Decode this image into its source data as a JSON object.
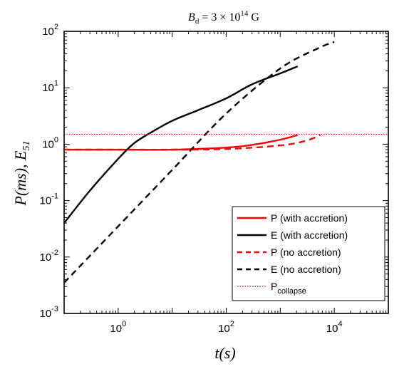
{
  "chart_data": {
    "type": "line",
    "title": {
      "prefix": "B",
      "subscript": "d",
      "middle": " = 3 × 10",
      "superscript": "14",
      "suffix": " G"
    },
    "xlabel": "t(s)",
    "ylabel": {
      "text": "P(ms), E",
      "subscript": "51"
    },
    "x_scale": "log",
    "y_scale": "log",
    "xlim": [
      0.1,
      100000
    ],
    "ylim": [
      0.001,
      100
    ],
    "x_ticks": [
      {
        "value": 1,
        "base": "10",
        "exp": "0"
      },
      {
        "value": 100,
        "base": "10",
        "exp": "2"
      },
      {
        "value": 10000,
        "base": "10",
        "exp": "4"
      }
    ],
    "y_ticks": [
      {
        "value": 0.001,
        "base": "10",
        "exp": "-3"
      },
      {
        "value": 0.01,
        "base": "10",
        "exp": "-2"
      },
      {
        "value": 0.1,
        "base": "10",
        "exp": "-1"
      },
      {
        "value": 1,
        "base": "10",
        "exp": "0"
      },
      {
        "value": 10,
        "base": "10",
        "exp": "1"
      },
      {
        "value": 100,
        "base": "10",
        "exp": "2"
      }
    ],
    "legend_position": "bottom-right",
    "series": [
      {
        "name": "P (with accretion)",
        "color": "#ff0000",
        "dash": "solid",
        "x": [
          0.1,
          1,
          10,
          100,
          300,
          1000,
          2100
        ],
        "y": [
          0.8,
          0.8,
          0.8,
          0.87,
          0.97,
          1.2,
          1.45
        ]
      },
      {
        "name": "E (with accretion)",
        "color": "#000000",
        "dash": "solid",
        "x": [
          0.1,
          0.3,
          1,
          2,
          4,
          10,
          30,
          100,
          300,
          1000,
          2100
        ],
        "y": [
          0.04,
          0.15,
          0.55,
          1.05,
          1.6,
          2.6,
          4.0,
          6.5,
          11.5,
          18,
          24
        ]
      },
      {
        "name": "P (no accretion)",
        "color": "#ff0000",
        "dash": "dashed",
        "x": [
          0.1,
          1,
          10,
          100,
          1000,
          3000,
          5500
        ],
        "y": [
          0.8,
          0.8,
          0.8,
          0.82,
          0.95,
          1.15,
          1.45
        ]
      },
      {
        "name": "E (no accretion)",
        "color": "#000000",
        "dash": "dashed",
        "x": [
          0.1,
          1,
          10,
          100,
          1000,
          5000,
          10000
        ],
        "y": [
          0.0035,
          0.035,
          0.35,
          3.5,
          22,
          50,
          65
        ]
      },
      {
        "name": "P",
        "name_subscript": "collapse",
        "color": "#ff0000",
        "dash": "dotted",
        "x": [
          0.1,
          100000
        ],
        "y": [
          1.5,
          1.5
        ]
      }
    ]
  }
}
